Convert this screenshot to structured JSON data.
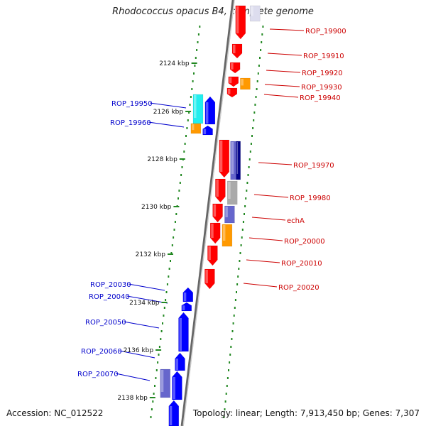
{
  "title": "Rhodococcus opacus B4, complete genome",
  "footer": {
    "accession": "Accession: NC_012522",
    "summary": "Topology: linear; Length: 7,913,450 bp; Genes: 7,307"
  },
  "colors": {
    "forward_label": "#0000cc",
    "reverse_label": "#cc0000",
    "ticks": "#228822",
    "axis": "#666666",
    "cds_forward": "#0000ff",
    "cds_reverse": "#ff0000",
    "orange": "#ff9900",
    "cyan": "#22eeee",
    "purple": "#6666cc",
    "navy": "#000088",
    "gray": "#aaaaaa"
  },
  "kbp_ticks": [
    "2124 kbp",
    "2126 kbp",
    "2128 kbp",
    "2130 kbp",
    "2132 kbp",
    "2134 kbp",
    "2136 kbp",
    "2138 kbp"
  ],
  "forward_labels": [
    "ROP_19950",
    "ROP_19960",
    "ROP_20030",
    "ROP_20040",
    "ROP_20050",
    "ROP_20060",
    "ROP_20070"
  ],
  "reverse_labels": [
    "ROP_19900",
    "ROP_19910",
    "ROP_19920",
    "ROP_19930",
    "ROP_19940",
    "ROP_19970",
    "ROP_19980",
    "echA",
    "ROP_20000",
    "ROP_20010",
    "ROP_20020"
  ]
}
